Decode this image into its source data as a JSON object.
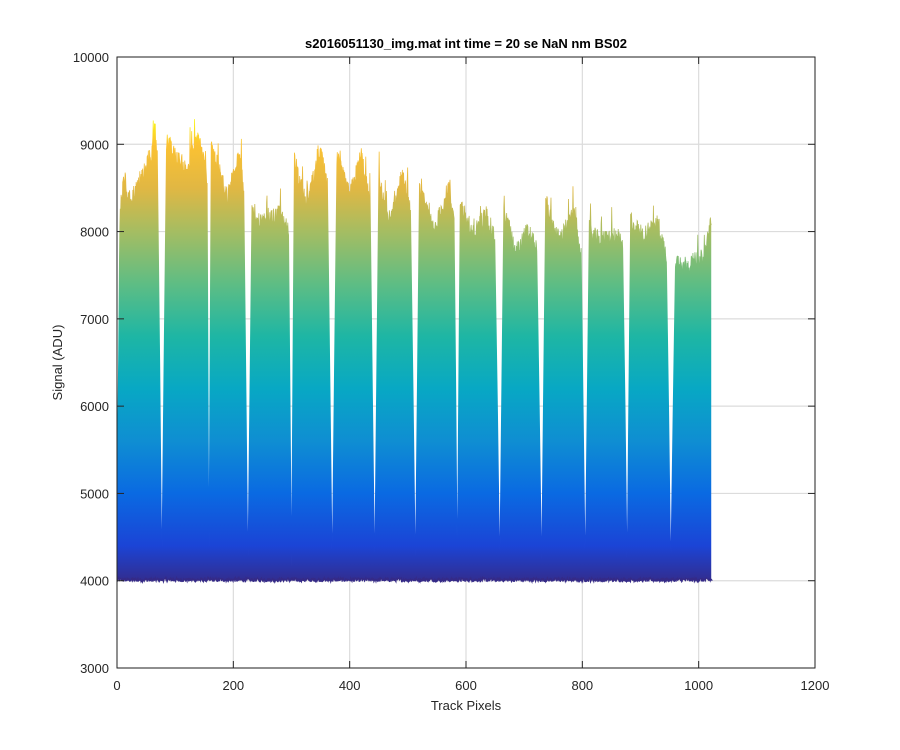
{
  "chart_data": {
    "type": "area",
    "title": "s2016051130_img.mat int time = 20 se  NaN nm BS02",
    "xlabel": "Track Pixels",
    "ylabel": "Signal (ADU)",
    "xlim": [
      0,
      1200
    ],
    "ylim": [
      3000,
      10000
    ],
    "xticks": [
      0,
      200,
      400,
      600,
      800,
      1000,
      1200
    ],
    "yticks": [
      3000,
      4000,
      5000,
      6000,
      7000,
      8000,
      9000,
      10000
    ],
    "xtick_labels": [
      "0",
      "200",
      "400",
      "600",
      "800",
      "1000",
      "1200"
    ],
    "ytick_labels": [
      "3000",
      "4000",
      "5000",
      "6000",
      "7000",
      "8000",
      "9000",
      "10000"
    ],
    "grid": true,
    "colormap": "parula",
    "colorscale": [
      {
        "value": 3950,
        "color": "#352a87"
      },
      {
        "value": 4400,
        "color": "#1b44d6"
      },
      {
        "value": 5000,
        "color": "#0a6ae2"
      },
      {
        "value": 5600,
        "color": "#0f8ed2"
      },
      {
        "value": 6200,
        "color": "#08a8c4"
      },
      {
        "value": 6800,
        "color": "#1eb6a4"
      },
      {
        "value": 7400,
        "color": "#5ebd84"
      },
      {
        "value": 8000,
        "color": "#a5bd62"
      },
      {
        "value": 8500,
        "color": "#e1b743"
      },
      {
        "value": 9000,
        "color": "#fcc232"
      },
      {
        "value": 9300,
        "color": "#f9f914"
      }
    ],
    "baseline": {
      "x_start": 0,
      "x_end": 1024,
      "value": 4010
    },
    "series": [
      {
        "x": [
          0,
          5,
          12,
          20,
          40,
          60,
          65,
          70
        ],
        "upper": [
          4800,
          8200,
          8650,
          8350,
          8550,
          8900,
          9200,
          8800
        ]
      },
      {
        "x": [
          85,
          95,
          120,
          140,
          155
        ],
        "upper": [
          9050,
          8900,
          8700,
          9100,
          8600
        ]
      },
      {
        "x": [
          162,
          168,
          190,
          210,
          218
        ],
        "upper": [
          9000,
          8850,
          8400,
          8950,
          8500
        ]
      },
      {
        "x": [
          232,
          240,
          255,
          280,
          295
        ],
        "upper": [
          8200,
          8100,
          8100,
          8200,
          8000
        ]
      },
      {
        "x": [
          305,
          310,
          325,
          350,
          362
        ],
        "upper": [
          8900,
          8700,
          8300,
          8900,
          8500
        ]
      },
      {
        "x": [
          378,
          385,
          400,
          420,
          435
        ],
        "upper": [
          8850,
          8700,
          8400,
          8880,
          8300
        ]
      },
      {
        "x": [
          450,
          458,
          470,
          490,
          505
        ],
        "upper": [
          8550,
          8400,
          8100,
          8650,
          8200
        ]
      },
      {
        "x": [
          520,
          530,
          545,
          570,
          580
        ],
        "upper": [
          8450,
          8300,
          8000,
          8500,
          8100
        ]
      },
      {
        "x": [
          590,
          598,
          610,
          635,
          650
        ],
        "upper": [
          8300,
          8200,
          7950,
          8200,
          7900
        ]
      },
      {
        "x": [
          665,
          672,
          685,
          705,
          722
        ],
        "upper": [
          8250,
          8100,
          7750,
          8000,
          7800
        ]
      },
      {
        "x": [
          737,
          742,
          760,
          785,
          798
        ],
        "upper": [
          8400,
          8200,
          7900,
          8200,
          7700
        ]
      },
      {
        "x": [
          812,
          818,
          830,
          860,
          870
        ],
        "upper": [
          8050,
          7950,
          7900,
          7950,
          7800
        ]
      },
      {
        "x": [
          883,
          890,
          905,
          930,
          945
        ],
        "upper": [
          8150,
          8050,
          7950,
          8100,
          7700
        ]
      },
      {
        "x": [
          960,
          965,
          980,
          1010,
          1022
        ],
        "upper": [
          7700,
          7650,
          7620,
          7700,
          8200
        ]
      }
    ],
    "gap_minima": [
      {
        "x": 77,
        "value": 4150
      },
      {
        "x": 158,
        "value": 4150
      },
      {
        "x": 225,
        "value": 4150
      },
      {
        "x": 300,
        "value": 4150
      },
      {
        "x": 370,
        "value": 4150
      },
      {
        "x": 443,
        "value": 4150
      },
      {
        "x": 513,
        "value": 4150
      },
      {
        "x": 585,
        "value": 4150
      },
      {
        "x": 658,
        "value": 4150
      },
      {
        "x": 730,
        "value": 4150
      },
      {
        "x": 805,
        "value": 4150
      },
      {
        "x": 877,
        "value": 4150
      },
      {
        "x": 952,
        "value": 4120
      }
    ]
  }
}
